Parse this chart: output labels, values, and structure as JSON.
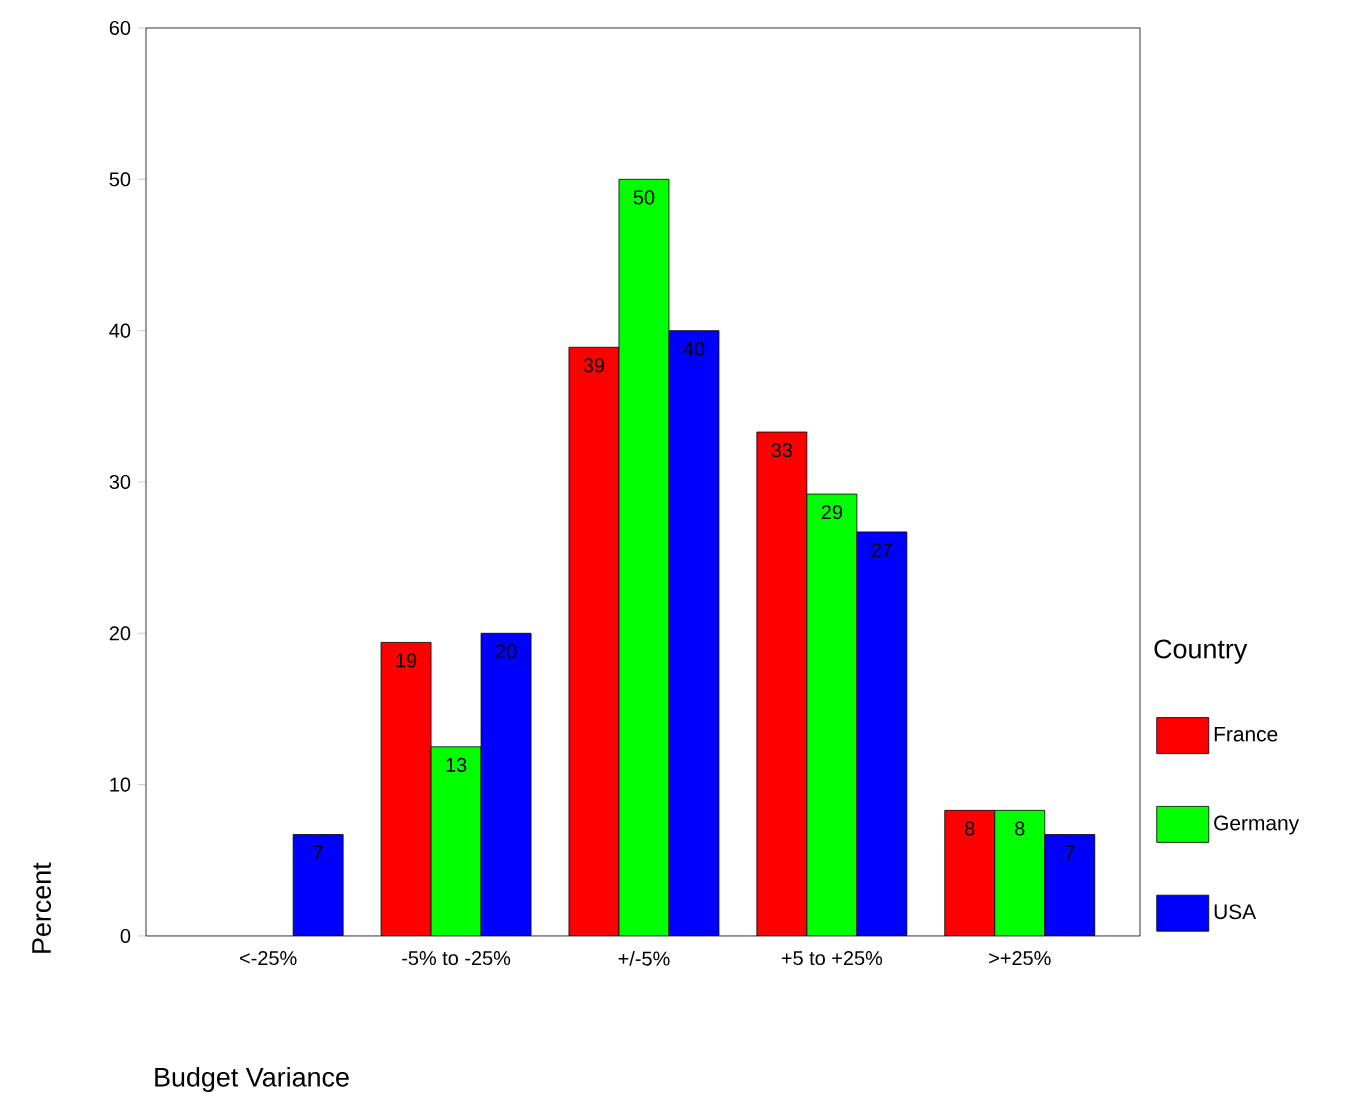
{
  "chart_data": {
    "type": "bar",
    "xlabel": "Budget Variance",
    "ylabel": "Percent",
    "legend_title": "Country",
    "categories": [
      "<-25%",
      "-5% to -25%",
      "+/-5%",
      "+5 to +25%",
      ">+25%"
    ],
    "series": [
      {
        "name": "France",
        "color": "#ff0000",
        "values": [
          null,
          19.4,
          38.9,
          33.3,
          8.3
        ],
        "value_labels": [
          null,
          "19",
          "39",
          "33",
          "8"
        ]
      },
      {
        "name": "Germany",
        "color": "#00ff00",
        "values": [
          null,
          12.5,
          50,
          29.2,
          8.3
        ],
        "value_labels": [
          null,
          "13",
          "50",
          "29",
          "8"
        ]
      },
      {
        "name": "USA",
        "color": "#0000ff",
        "values": [
          6.7,
          20,
          40,
          26.7,
          6.7
        ],
        "value_labels": [
          "7",
          "20",
          "40",
          "27",
          "7"
        ]
      }
    ],
    "ylim": [
      0,
      60
    ],
    "yticks": [
      0,
      10,
      20,
      30,
      40,
      50,
      60
    ],
    "legend": "right"
  }
}
